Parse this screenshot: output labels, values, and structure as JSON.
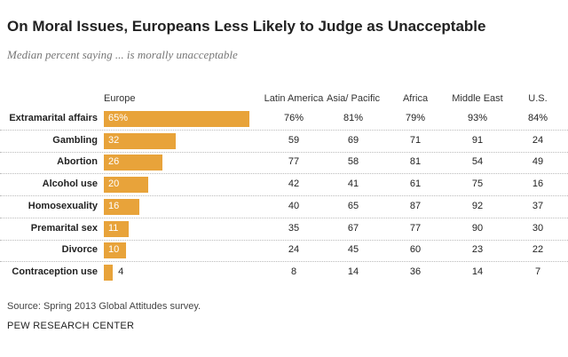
{
  "chart_data": {
    "type": "bar",
    "title": "On Moral Issues, Europeans Less Likely to Judge as Unacceptable",
    "subtitle": "Median percent saying ... is morally unacceptable",
    "categories": [
      "Extramarital affairs",
      "Gambling",
      "Abortion",
      "Alcohol use",
      "Homosexuality",
      "Premarital sex",
      "Divorce",
      "Contraception use"
    ],
    "series": [
      {
        "name": "Europe",
        "color": "#e8a33a",
        "values": [
          65,
          32,
          26,
          20,
          16,
          11,
          10,
          4
        ],
        "value_labels": [
          "65%",
          "32",
          "26",
          "20",
          "16",
          "11",
          "10",
          "4"
        ]
      },
      {
        "name": "Latin America",
        "values": [
          76,
          59,
          77,
          42,
          40,
          35,
          24,
          8
        ],
        "value_labels": [
          "76%",
          "59",
          "77",
          "42",
          "40",
          "35",
          "24",
          "8"
        ]
      },
      {
        "name": "Asia/ Pacific",
        "values": [
          81,
          69,
          58,
          41,
          65,
          67,
          45,
          14
        ],
        "value_labels": [
          "81%",
          "69",
          "58",
          "41",
          "65",
          "67",
          "45",
          "14"
        ]
      },
      {
        "name": "Africa",
        "values": [
          79,
          71,
          81,
          61,
          87,
          77,
          60,
          36
        ],
        "value_labels": [
          "79%",
          "71",
          "81",
          "61",
          "87",
          "77",
          "60",
          "36"
        ]
      },
      {
        "name": "Middle East",
        "values": [
          93,
          91,
          54,
          75,
          92,
          90,
          23,
          14
        ],
        "value_labels": [
          "93%",
          "91",
          "54",
          "75",
          "92",
          "90",
          "23",
          "14"
        ]
      },
      {
        "name": "U.S.",
        "values": [
          84,
          24,
          49,
          16,
          37,
          30,
          22,
          7
        ],
        "value_labels": [
          "84%",
          "24",
          "49",
          "16",
          "37",
          "30",
          "22",
          "7"
        ]
      }
    ],
    "source": "Source: Spring 2013 Global Attitudes survey.",
    "footer": "PEW RESEARCH CENTER"
  }
}
